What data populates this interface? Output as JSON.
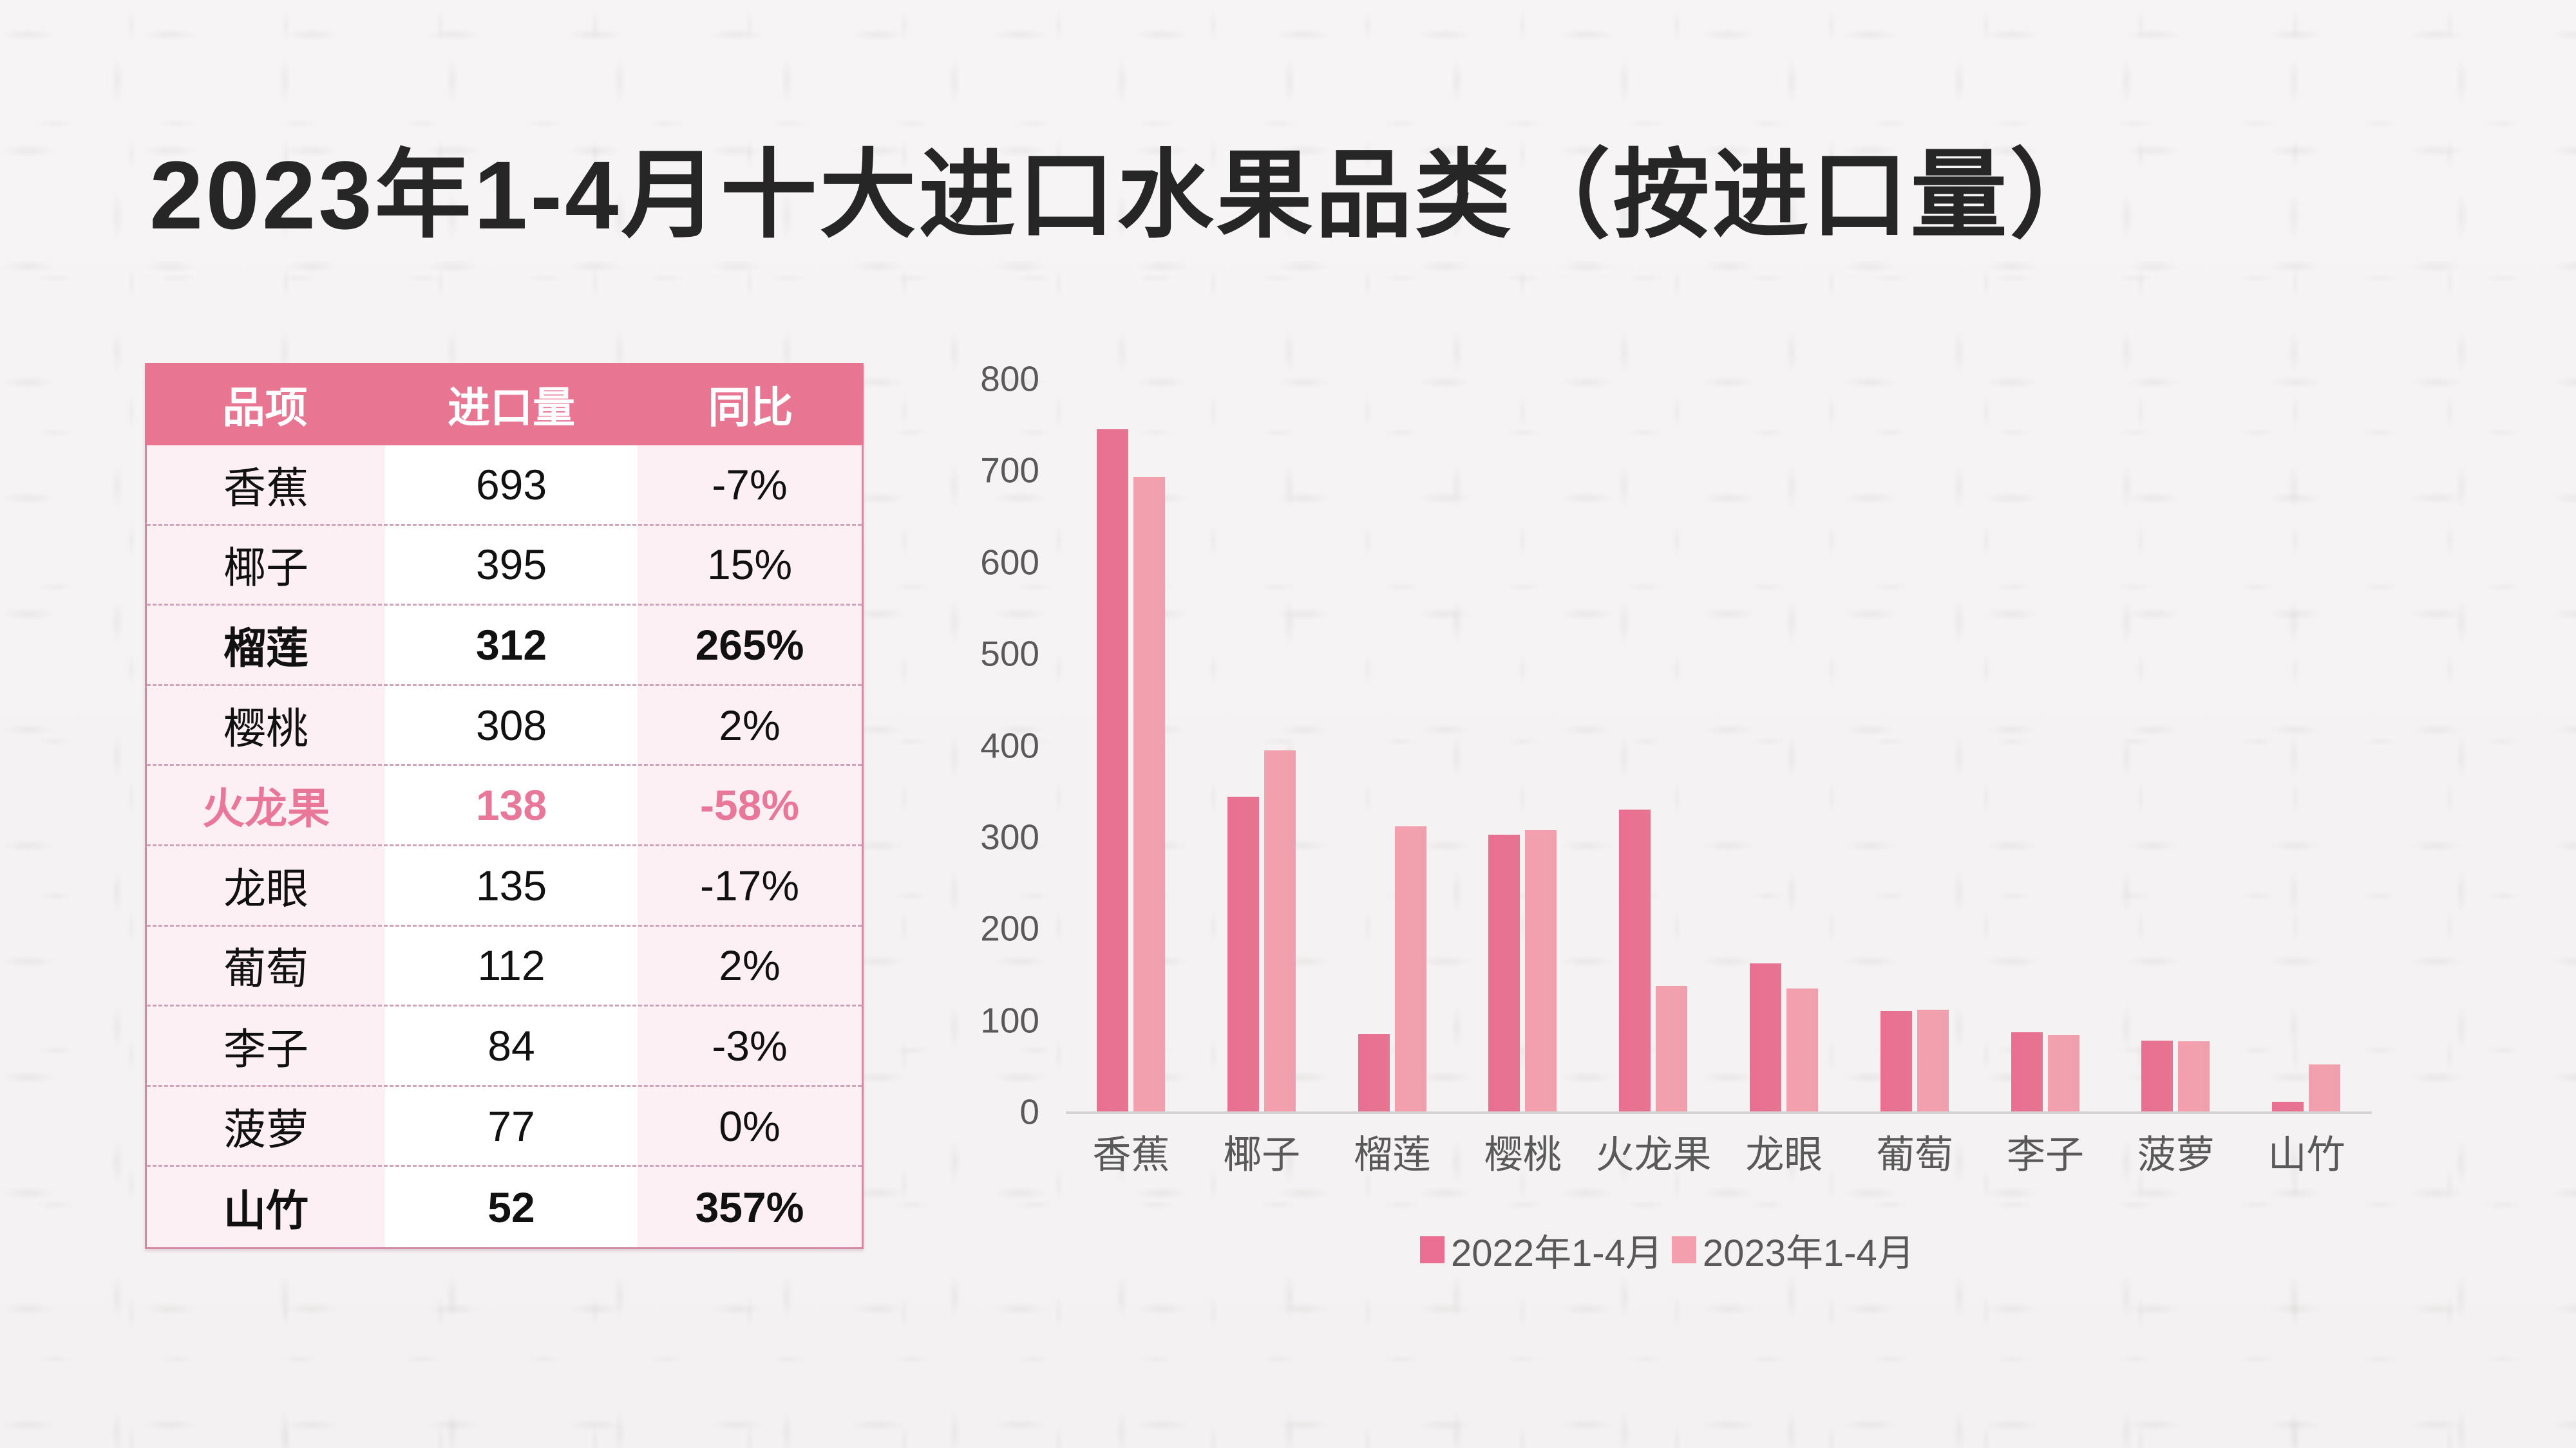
{
  "title": "2023年1-4月十大进口水果品类（按进口量）",
  "colors": {
    "header_bg": "#E87592",
    "highlight_text": "#E8779A",
    "series_2022": "#EA6F92",
    "series_2023": "#F39FAE",
    "table_border": "#D38BA5",
    "axis_text": "#595959"
  },
  "table": {
    "headers": [
      "品项",
      "进口量",
      "同比"
    ],
    "rows": [
      {
        "item": "香蕉",
        "volume": "693",
        "yoy": "-7%",
        "style": "normal"
      },
      {
        "item": "椰子",
        "volume": "395",
        "yoy": "15%",
        "style": "normal"
      },
      {
        "item": "榴莲",
        "volume": "312",
        "yoy": "265%",
        "style": "bold"
      },
      {
        "item": "樱桃",
        "volume": "308",
        "yoy": "2%",
        "style": "normal"
      },
      {
        "item": "火龙果",
        "volume": "138",
        "yoy": "-58%",
        "style": "highlight"
      },
      {
        "item": "龙眼",
        "volume": "135",
        "yoy": "-17%",
        "style": "normal"
      },
      {
        "item": "葡萄",
        "volume": "112",
        "yoy": "2%",
        "style": "normal"
      },
      {
        "item": "李子",
        "volume": "84",
        "yoy": "-3%",
        "style": "normal"
      },
      {
        "item": "菠萝",
        "volume": "77",
        "yoy": "0%",
        "style": "normal"
      },
      {
        "item": "山竹",
        "volume": "52",
        "yoy": "357%",
        "style": "bold"
      }
    ]
  },
  "chart_data": {
    "type": "bar",
    "title": "",
    "xlabel": "",
    "ylabel": "",
    "ylim": [
      0,
      800
    ],
    "yticks": [
      0,
      100,
      200,
      300,
      400,
      500,
      600,
      700,
      800
    ],
    "grid": false,
    "legend_position": "bottom",
    "categories": [
      "香蕉",
      "椰子",
      "榴莲",
      "樱桃",
      "火龙果",
      "龙眼",
      "葡萄",
      "李子",
      "菠萝",
      "山竹"
    ],
    "series": [
      {
        "name": "2022年1-4月",
        "values": [
          745,
          344,
          85,
          303,
          330,
          162,
          110,
          87,
          78,
          11
        ]
      },
      {
        "name": "2023年1-4月",
        "values": [
          693,
          395,
          312,
          308,
          138,
          135,
          112,
          84,
          77,
          52
        ]
      }
    ]
  }
}
